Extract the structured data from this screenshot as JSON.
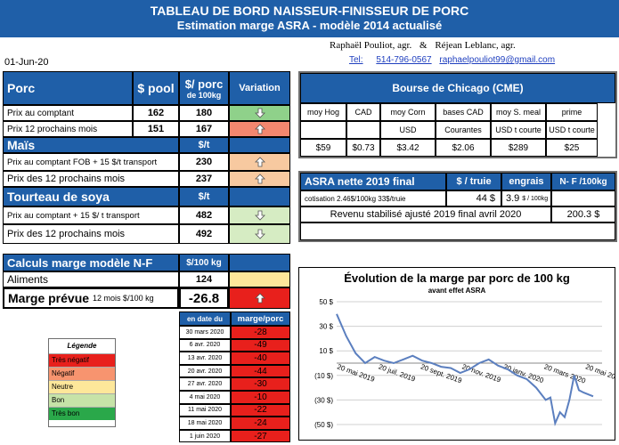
{
  "header": {
    "title": "TABLEAU DE BORD NAISSEUR-FINISSEUR DE PORC",
    "subtitle": "Estimation marge ASRA - modèle 2014 actualisé"
  },
  "authors": {
    "name1": "Raphaël Pouliot, agr.",
    "amp": "&",
    "name2": "Réjean Leblanc, agr."
  },
  "contact": {
    "tel_label": "Tel:",
    "tel": "514-796-0567",
    "email": "raphaelpouliot99@gmail.com"
  },
  "date": "01-Jun-20",
  "porc": {
    "title": "Porc",
    "col_pool": "$ pool",
    "col_porc": "$/ porc",
    "col_porc2": "de 100kg",
    "col_var": "Variation",
    "rows": [
      {
        "label": "Prix au comptant",
        "pool": "162",
        "value": "180",
        "arrow": "down"
      },
      {
        "label": "Prix 12 prochains mois",
        "pool": "151",
        "value": "167",
        "arrow": "up"
      }
    ]
  },
  "mais": {
    "title": "Maïs",
    "unit": "$/t",
    "rows": [
      {
        "label": "Prix au comptant FOB + 15 $/t transport",
        "value": "230",
        "arrow": "up"
      },
      {
        "label": "Prix des 12 prochains mois",
        "value": "237",
        "arrow": "up"
      }
    ]
  },
  "soya": {
    "title": "Tourteau de soya",
    "unit": "$/t",
    "rows": [
      {
        "label": "Prix au comptant + 15 $/ t transport",
        "value": "482",
        "arrow": "down"
      },
      {
        "label": "Prix des 12 prochains mois",
        "value": "492",
        "arrow": "down"
      }
    ]
  },
  "calculs": {
    "title": "Calculs marge  modèle N-F",
    "unit": "$/100 kg",
    "aliments_label": "Aliments",
    "aliments_value": "124",
    "marge_label": "Marge prévue",
    "marge_sub": "12 mois  $/100 kg",
    "marge_value": "-26.8"
  },
  "history": {
    "col_date": "en date du",
    "col_marge": "marge/porc",
    "rows": [
      {
        "date": "30 mars 2020",
        "value": "-28"
      },
      {
        "date": "6 avr. 2020",
        "value": "-49"
      },
      {
        "date": "13 avr. 2020",
        "value": "-40"
      },
      {
        "date": "20 avr. 2020",
        "value": "-44"
      },
      {
        "date": "27 avr. 2020",
        "value": "-30"
      },
      {
        "date": "4 mai 2020",
        "value": "-10"
      },
      {
        "date": "11 mai 2020",
        "value": "-22"
      },
      {
        "date": "18 mai 2020",
        "value": "-24"
      },
      {
        "date": "1 juin 2020",
        "value": "-27"
      }
    ]
  },
  "legend": {
    "title": "Légende",
    "items": [
      {
        "label": "Très négatif",
        "color": "#e8201c"
      },
      {
        "label": "Négatif",
        "color": "#f7946f"
      },
      {
        "label": "Neutre",
        "color": "#fde79a"
      },
      {
        "label": "Bon",
        "color": "#c6e3a8"
      },
      {
        "label": "Très bon",
        "color": "#2aa84a"
      }
    ]
  },
  "cme": {
    "title": "Bourse de Chicago (CME)",
    "headers": [
      "moy Hog",
      "CAD",
      "moy Corn",
      "bases CAD",
      "moy S. meal",
      "prime"
    ],
    "units": [
      "",
      "",
      "USD",
      "Courantes",
      "USD t courte",
      "USD t courte"
    ],
    "values": [
      "$59",
      "$0.73",
      "$3.42",
      "$2.06",
      "$289",
      "$25"
    ]
  },
  "asra": {
    "title": "ASRA nette 2019 final",
    "col_truie": "$ / truie",
    "col_engrais": "engrais",
    "col_nf": "N- F /100kg",
    "cotis_label": "cotisation 2.46$/100kg  33$/truie",
    "truie_value": "44 $",
    "engrais_value": "3.9",
    "engrais_unit": "$ / 100kg",
    "revenu_label": "Revenu stabilisé ajusté 2019 final  avril 2020",
    "revenu_value": "200.3 $"
  },
  "chart_data": {
    "type": "line",
    "title": "Évolution de la marge par porc de 100 kg",
    "subtitle": "avant effet ASRA",
    "yticks": [
      "50 $",
      "30 $",
      "10 $",
      "(10 $)",
      "(30 $)",
      "(50 $)"
    ],
    "ylim": [
      -50,
      50
    ],
    "xticks": [
      "20 mai 2019",
      "20 juil. 2019",
      "20 sept. 2019",
      "20 nov. 2019",
      "20 janv. 2020",
      "20 mars 2020",
      "20 mai 2020"
    ],
    "x": [
      "2019-05-20",
      "2019-06-03",
      "2019-06-17",
      "2019-07-01",
      "2019-07-15",
      "2019-07-29",
      "2019-08-12",
      "2019-08-26",
      "2019-09-09",
      "2019-09-23",
      "2019-10-07",
      "2019-10-21",
      "2019-11-04",
      "2019-11-18",
      "2019-12-02",
      "2019-12-16",
      "2019-12-30",
      "2020-01-13",
      "2020-01-27",
      "2020-02-10",
      "2020-02-24",
      "2020-03-09",
      "2020-03-23",
      "2020-03-30",
      "2020-04-06",
      "2020-04-13",
      "2020-04-20",
      "2020-04-27",
      "2020-05-04",
      "2020-05-11",
      "2020-05-18",
      "2020-06-01"
    ],
    "y": [
      40,
      22,
      8,
      0,
      5,
      2,
      0,
      3,
      6,
      2,
      0,
      -3,
      -4,
      -8,
      -5,
      0,
      3,
      -2,
      -5,
      -10,
      -13,
      -20,
      -30,
      -28,
      -49,
      -40,
      -44,
      -30,
      -10,
      -22,
      -24,
      -27
    ]
  }
}
